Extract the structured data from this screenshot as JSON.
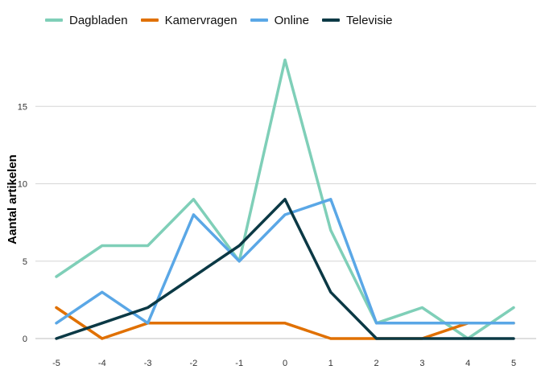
{
  "chart_data": {
    "type": "line",
    "title": "",
    "xlabel": "",
    "ylabel": "Aantal artikelen",
    "x": [
      -5,
      -4,
      -3,
      -2,
      -1,
      0,
      1,
      2,
      3,
      4,
      5
    ],
    "x_tick_labels": [
      "-5",
      "-4",
      "-3",
      "-2",
      "-1",
      "0",
      "1",
      "2",
      "3",
      "4",
      "5"
    ],
    "y_ticks": [
      0,
      5,
      10,
      15
    ],
    "y_tick_labels": [
      "0",
      "5",
      "10",
      "15"
    ],
    "ylim": [
      0,
      18.5
    ],
    "grid": true,
    "legend_position": "top-left",
    "series": [
      {
        "name": "Dagbladen",
        "color": "#7fcfb8",
        "values": [
          4,
          6,
          6,
          9,
          5,
          18,
          7,
          1,
          2,
          0,
          2
        ]
      },
      {
        "name": "Kamervragen",
        "color": "#e07000",
        "values": [
          2,
          0,
          1,
          1,
          1,
          1,
          0,
          0,
          0,
          1,
          1
        ]
      },
      {
        "name": "Online",
        "color": "#5aa7e6",
        "values": [
          1,
          3,
          1,
          8,
          5,
          8,
          9,
          1,
          1,
          1,
          1
        ]
      },
      {
        "name": "Televisie",
        "color": "#0b3945",
        "values": [
          0,
          1,
          2,
          4,
          6,
          9,
          3,
          0,
          0,
          0,
          0
        ]
      }
    ]
  }
}
